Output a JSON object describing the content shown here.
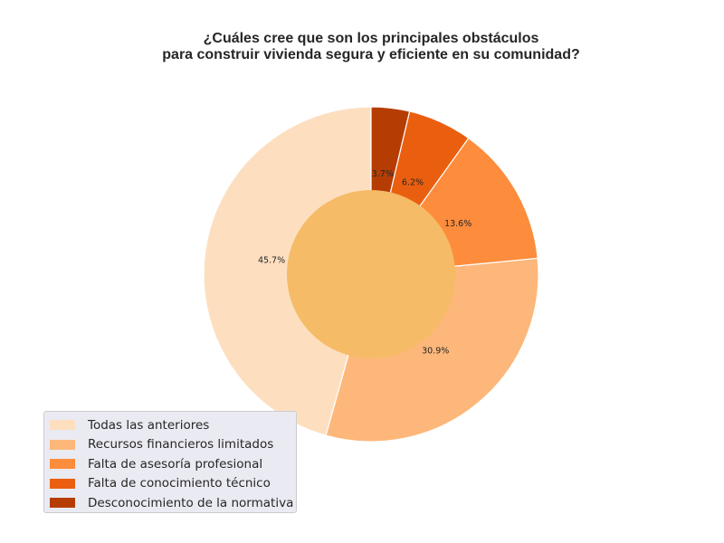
{
  "chart_data": {
    "type": "pie",
    "donut": true,
    "title": "¿Cuáles cree que son los principales obstáculos\npara construir vivienda segura y eficiente en su comunidad?",
    "title_lines": [
      "¿Cuáles cree que son los principales obstáculos",
      "para construir vivienda segura y eficiente en su comunidad?"
    ],
    "categories": [
      "Todas las anteriores",
      "Recursos financieros limitados",
      "Falta de asesoría profesional",
      "Falta de conocimiento técnico",
      "Desconocimiento de la normativa"
    ],
    "values": [
      45.7,
      30.9,
      13.6,
      6.2,
      3.7
    ],
    "labels": [
      "45.7%",
      "30.9%",
      "13.6%",
      "6.2%",
      "3.7%"
    ],
    "colors": [
      "#fddfc0",
      "#fdb77a",
      "#fd8c3c",
      "#ea5f0f",
      "#b53d04"
    ],
    "center_color": "#f5bb66",
    "start_angle_deg": 90,
    "direction": "counterclockwise",
    "legend_position": "lower-left"
  }
}
